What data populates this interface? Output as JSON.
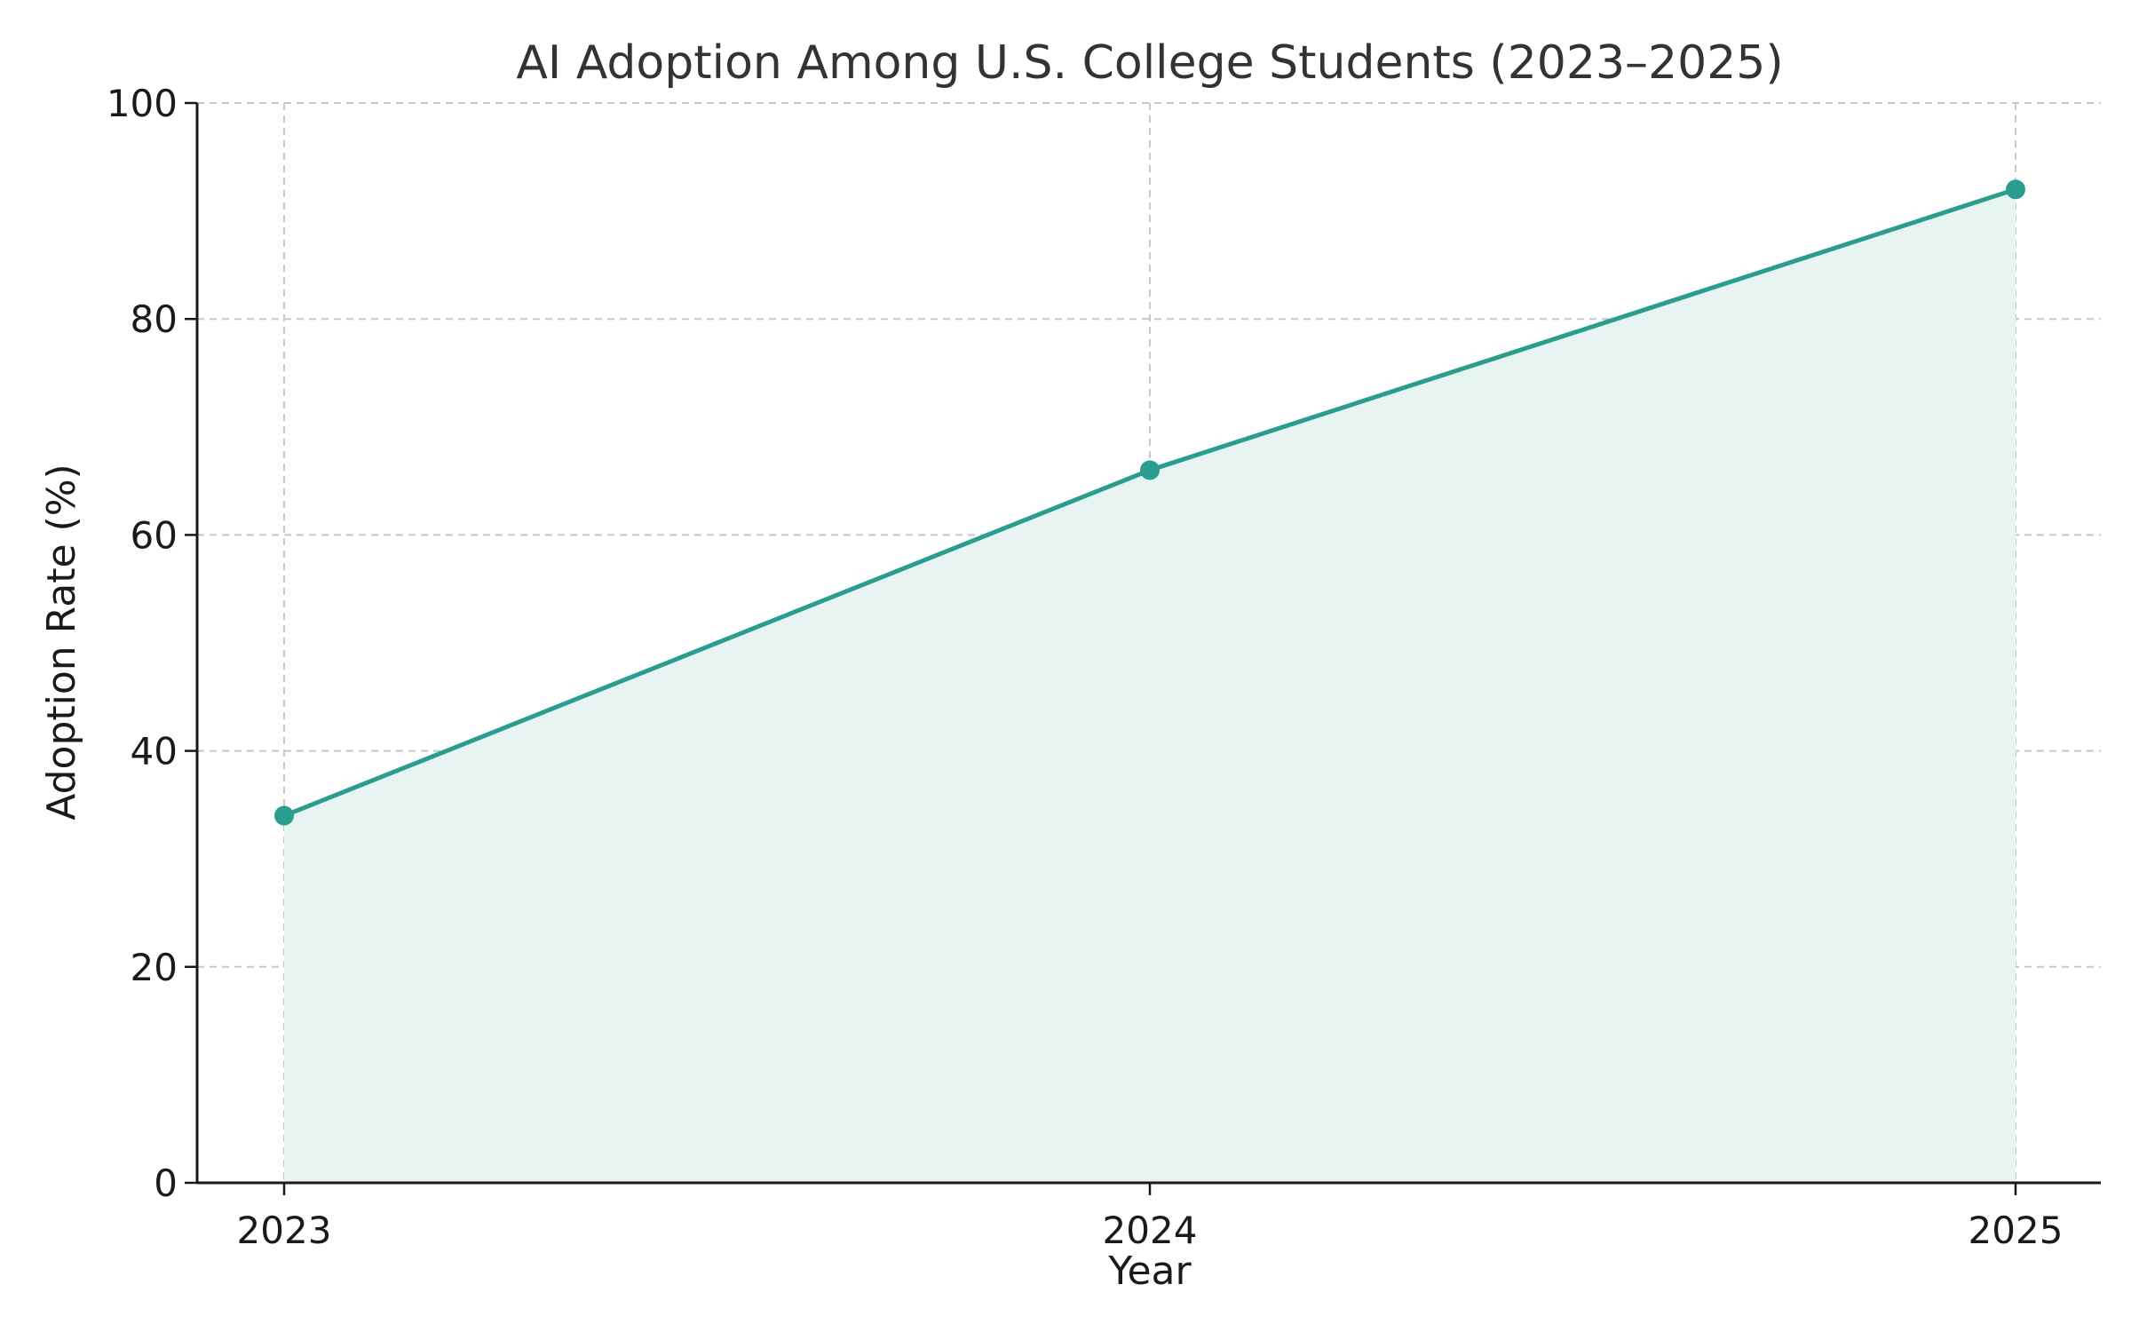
{
  "chart_data": {
    "type": "area",
    "title": "AI Adoption Among U.S. College Students (2023–2025)",
    "xlabel": "Year",
    "ylabel": "Adoption Rate (%)",
    "x": [
      "2023",
      "2024",
      "2025"
    ],
    "series": [
      {
        "name": "Adoption Rate",
        "values": [
          34,
          66,
          92
        ]
      }
    ],
    "ylim": [
      0,
      100
    ],
    "yticks": [
      0,
      20,
      40,
      60,
      80,
      100
    ],
    "grid": true,
    "colors": {
      "line": "#2a9d8f",
      "fill": "#e7f4f1",
      "marker": "#2a9d8f"
    }
  }
}
